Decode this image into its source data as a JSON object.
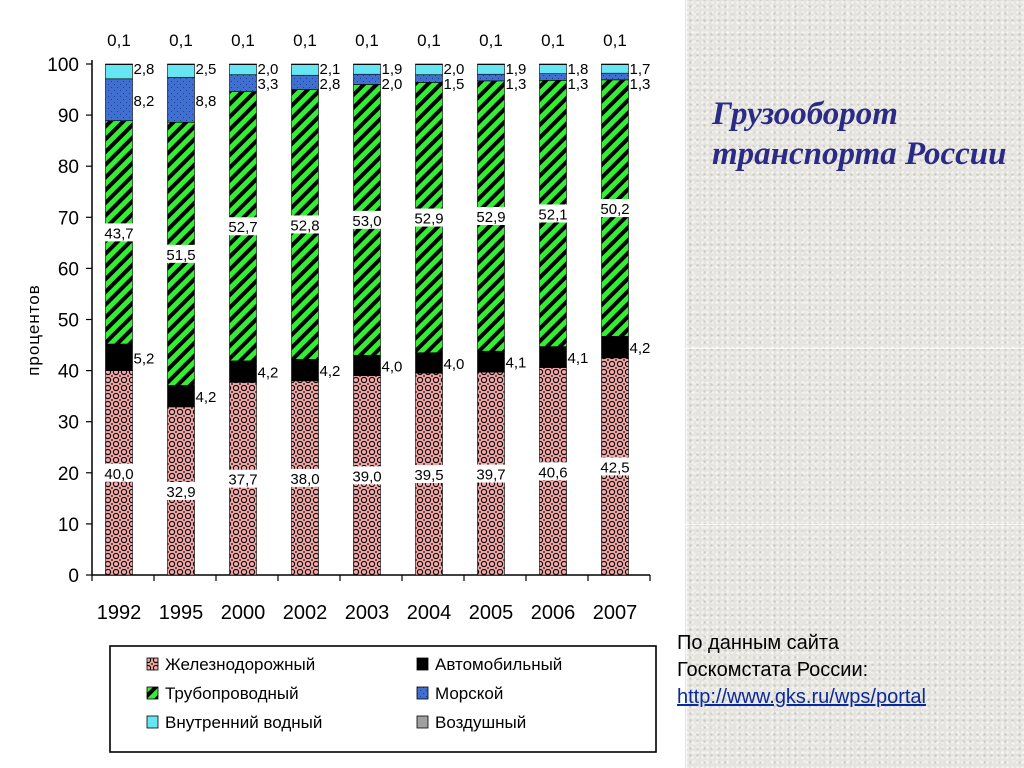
{
  "title": "Грузооборот транспорта России",
  "source": {
    "line1": "По данным сайта",
    "line2": "Госкомстата России:",
    "link": "http://www.gks.ru/wps/portal"
  },
  "colors": {
    "rail": "#f2a6a6",
    "auto": "#000000",
    "pipe": "#33ee33",
    "sea": "#3f6fd1",
    "river": "#66e6f2",
    "air": "#a0a0a0"
  },
  "chart_data": {
    "type": "bar",
    "stacked": true,
    "categories": [
      "1992",
      "1995",
      "2000",
      "2002",
      "2003",
      "2004",
      "2005",
      "2006",
      "2007"
    ],
    "ylabel": "процентов",
    "ylim": [
      0,
      100
    ],
    "yticks": [
      0,
      10,
      20,
      30,
      40,
      50,
      60,
      70,
      80,
      90,
      100
    ],
    "legend_position": "bottom",
    "series": [
      {
        "key": "rail",
        "name": "Железнодорожный",
        "values": [
          40.0,
          32.9,
          37.7,
          38.0,
          39.0,
          39.5,
          39.7,
          40.6,
          42.5
        ],
        "labels": [
          "40,0",
          "32,9",
          "37,7",
          "38,0",
          "39,0",
          "39,5",
          "39,7",
          "40,6",
          "42,5"
        ]
      },
      {
        "key": "auto",
        "name": "Автомобильный",
        "values": [
          5.2,
          4.2,
          4.2,
          4.2,
          4.0,
          4.0,
          4.1,
          4.1,
          4.2
        ],
        "labels": [
          "5,2",
          "4,2",
          "4,2",
          "4,2",
          "4,0",
          "4,0",
          "4,1",
          "4,1",
          "4,2"
        ]
      },
      {
        "key": "pipe",
        "name": "Трубопроводный",
        "values": [
          43.7,
          51.5,
          52.7,
          52.8,
          53.0,
          52.9,
          52.9,
          52.1,
          50.2
        ],
        "labels": [
          "43,7",
          "51,5",
          "52,7",
          "52,8",
          "53,0",
          "52,9",
          "52,9",
          "52,1",
          "50,2"
        ]
      },
      {
        "key": "sea",
        "name": "Морской",
        "values": [
          8.2,
          8.8,
          3.3,
          2.8,
          2.0,
          1.5,
          1.3,
          1.3,
          1.3
        ],
        "labels": [
          "8,2",
          "8,8",
          "3,3",
          "2,8",
          "2,0",
          "1,5",
          "1,3",
          "1,3",
          "1,3"
        ]
      },
      {
        "key": "river",
        "name": "Внутренний водный",
        "values": [
          2.8,
          2.5,
          2.0,
          2.1,
          1.9,
          2.0,
          1.9,
          1.8,
          1.7
        ],
        "labels": [
          "2,8",
          "2,5",
          "2,0",
          "2,1",
          "1,9",
          "2,0",
          "1,9",
          "1,8",
          "1,7"
        ]
      },
      {
        "key": "air",
        "name": "Воздушный",
        "values": [
          0.1,
          0.1,
          0.1,
          0.1,
          0.1,
          0.1,
          0.1,
          0.1,
          0.1
        ],
        "labels": [
          "0,1",
          "0,1",
          "0,1",
          "0,1",
          "0,1",
          "0,1",
          "0,1",
          "0,1",
          "0,1"
        ]
      }
    ]
  }
}
